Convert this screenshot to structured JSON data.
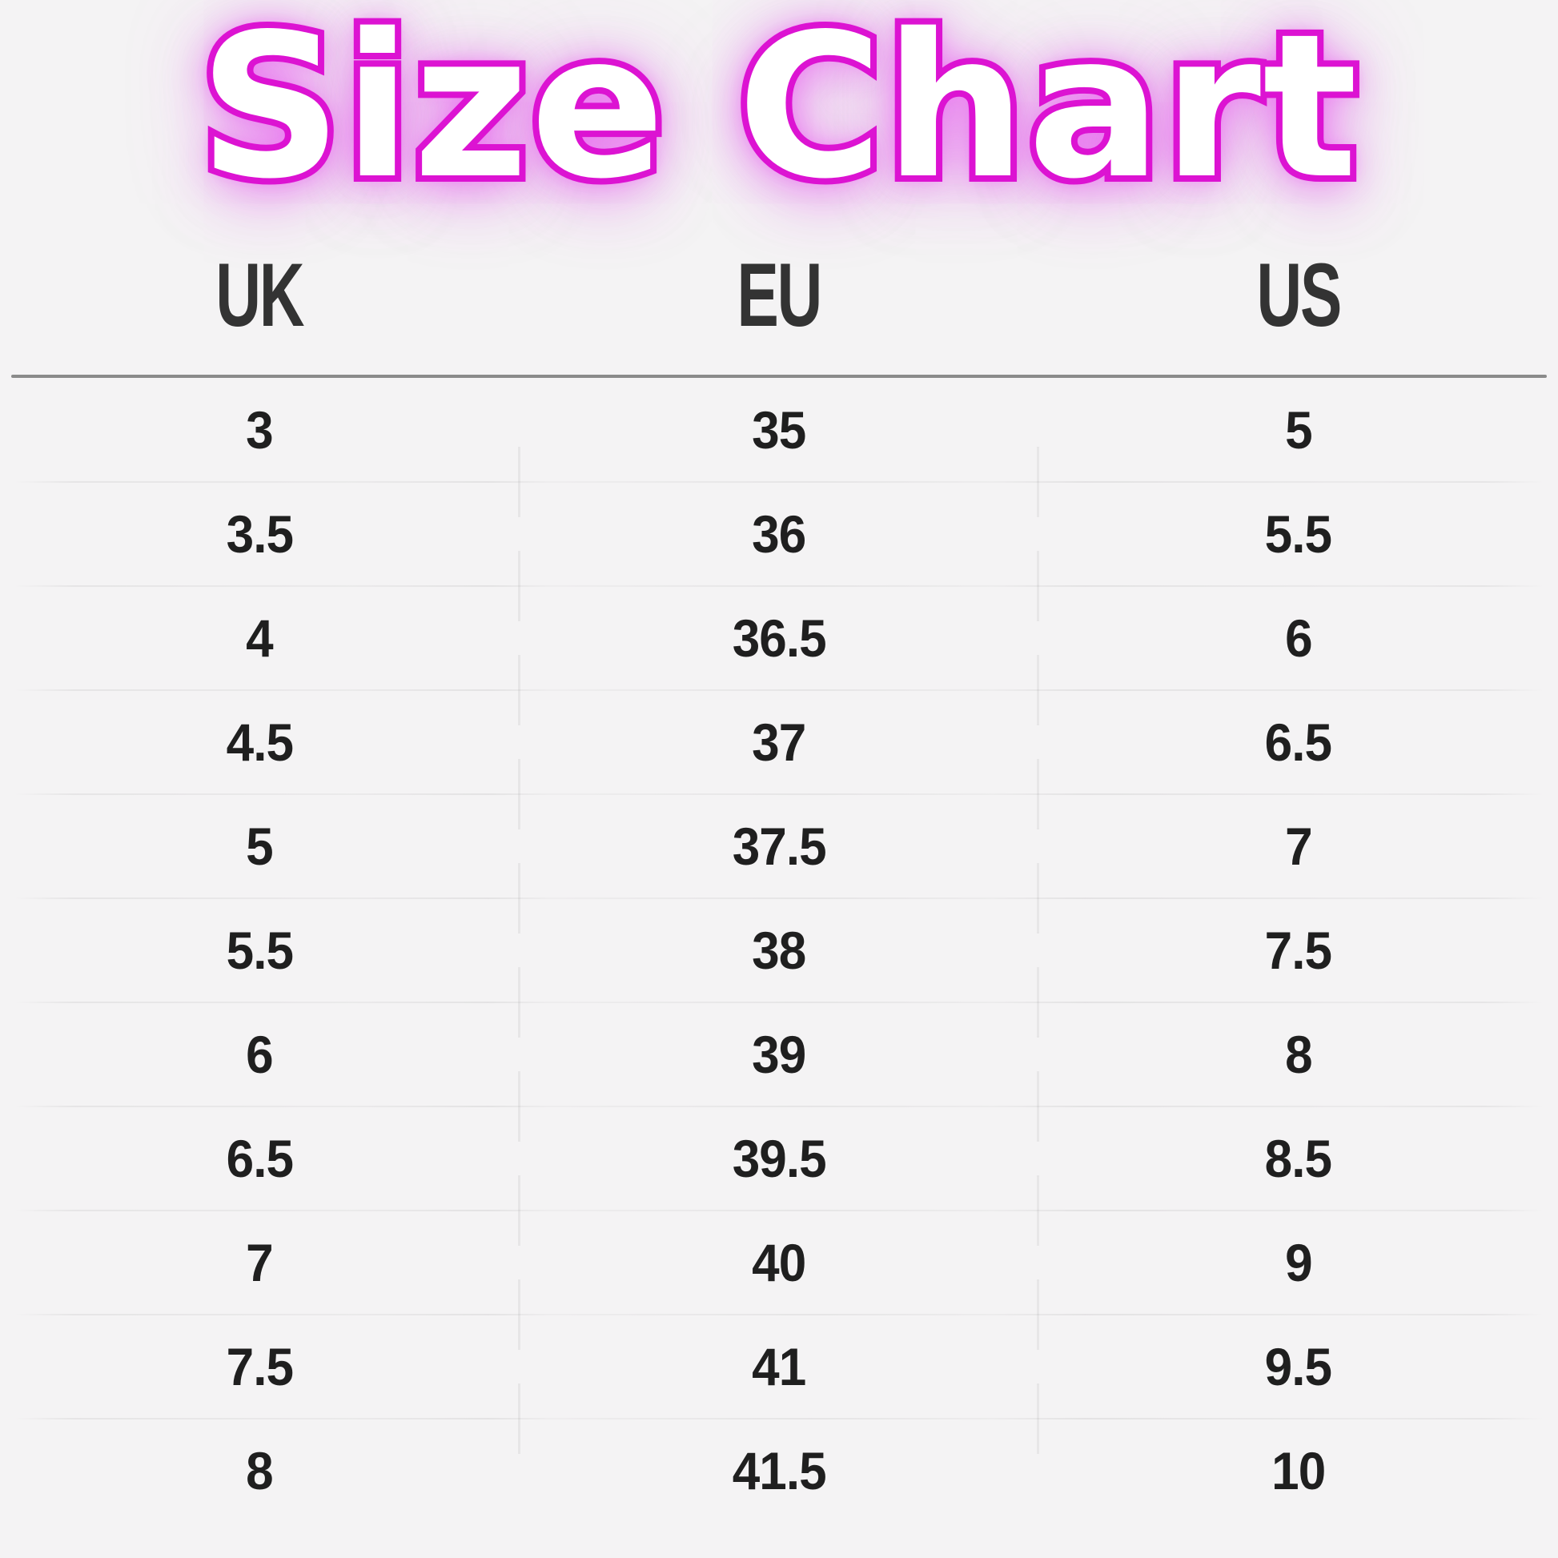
{
  "title": "Size Chart",
  "colors": {
    "accent_pink": "#dc13d2",
    "glow_pink": "#f074f8",
    "background": "#f4f3f4",
    "text_dark": "#1f1f1f",
    "header_text": "#333333",
    "rule": "#8a8a8a"
  },
  "table": {
    "columns": [
      "UK",
      "EU",
      "US"
    ],
    "rows": [
      [
        "3",
        "35",
        "5"
      ],
      [
        "3.5",
        "36",
        "5.5"
      ],
      [
        "4",
        "36.5",
        "6"
      ],
      [
        "4.5",
        "37",
        "6.5"
      ],
      [
        "5",
        "37.5",
        "7"
      ],
      [
        "5.5",
        "38",
        "7.5"
      ],
      [
        "6",
        "39",
        "8"
      ],
      [
        "6.5",
        "39.5",
        "8.5"
      ],
      [
        "7",
        "40",
        "9"
      ],
      [
        "7.5",
        "41",
        "9.5"
      ],
      [
        "8",
        "41.5",
        "10"
      ]
    ]
  },
  "chart_data": {
    "type": "table",
    "title": "Size Chart",
    "columns": [
      "UK",
      "EU",
      "US"
    ],
    "rows": [
      [
        "3",
        "35",
        "5"
      ],
      [
        "3.5",
        "36",
        "5.5"
      ],
      [
        "4",
        "36.5",
        "6"
      ],
      [
        "4.5",
        "37",
        "6.5"
      ],
      [
        "5",
        "37.5",
        "7"
      ],
      [
        "5.5",
        "38",
        "7.5"
      ],
      [
        "6",
        "39",
        "8"
      ],
      [
        "6.5",
        "39.5",
        "8.5"
      ],
      [
        "7",
        "40",
        "9"
      ],
      [
        "7.5",
        "41",
        "9.5"
      ],
      [
        "8",
        "41.5",
        "10"
      ]
    ],
    "layout_hints": {
      "columns_equal_thirds": true,
      "header_rule": true,
      "faint_row_separators": true,
      "faint_column_ticks": true
    }
  }
}
